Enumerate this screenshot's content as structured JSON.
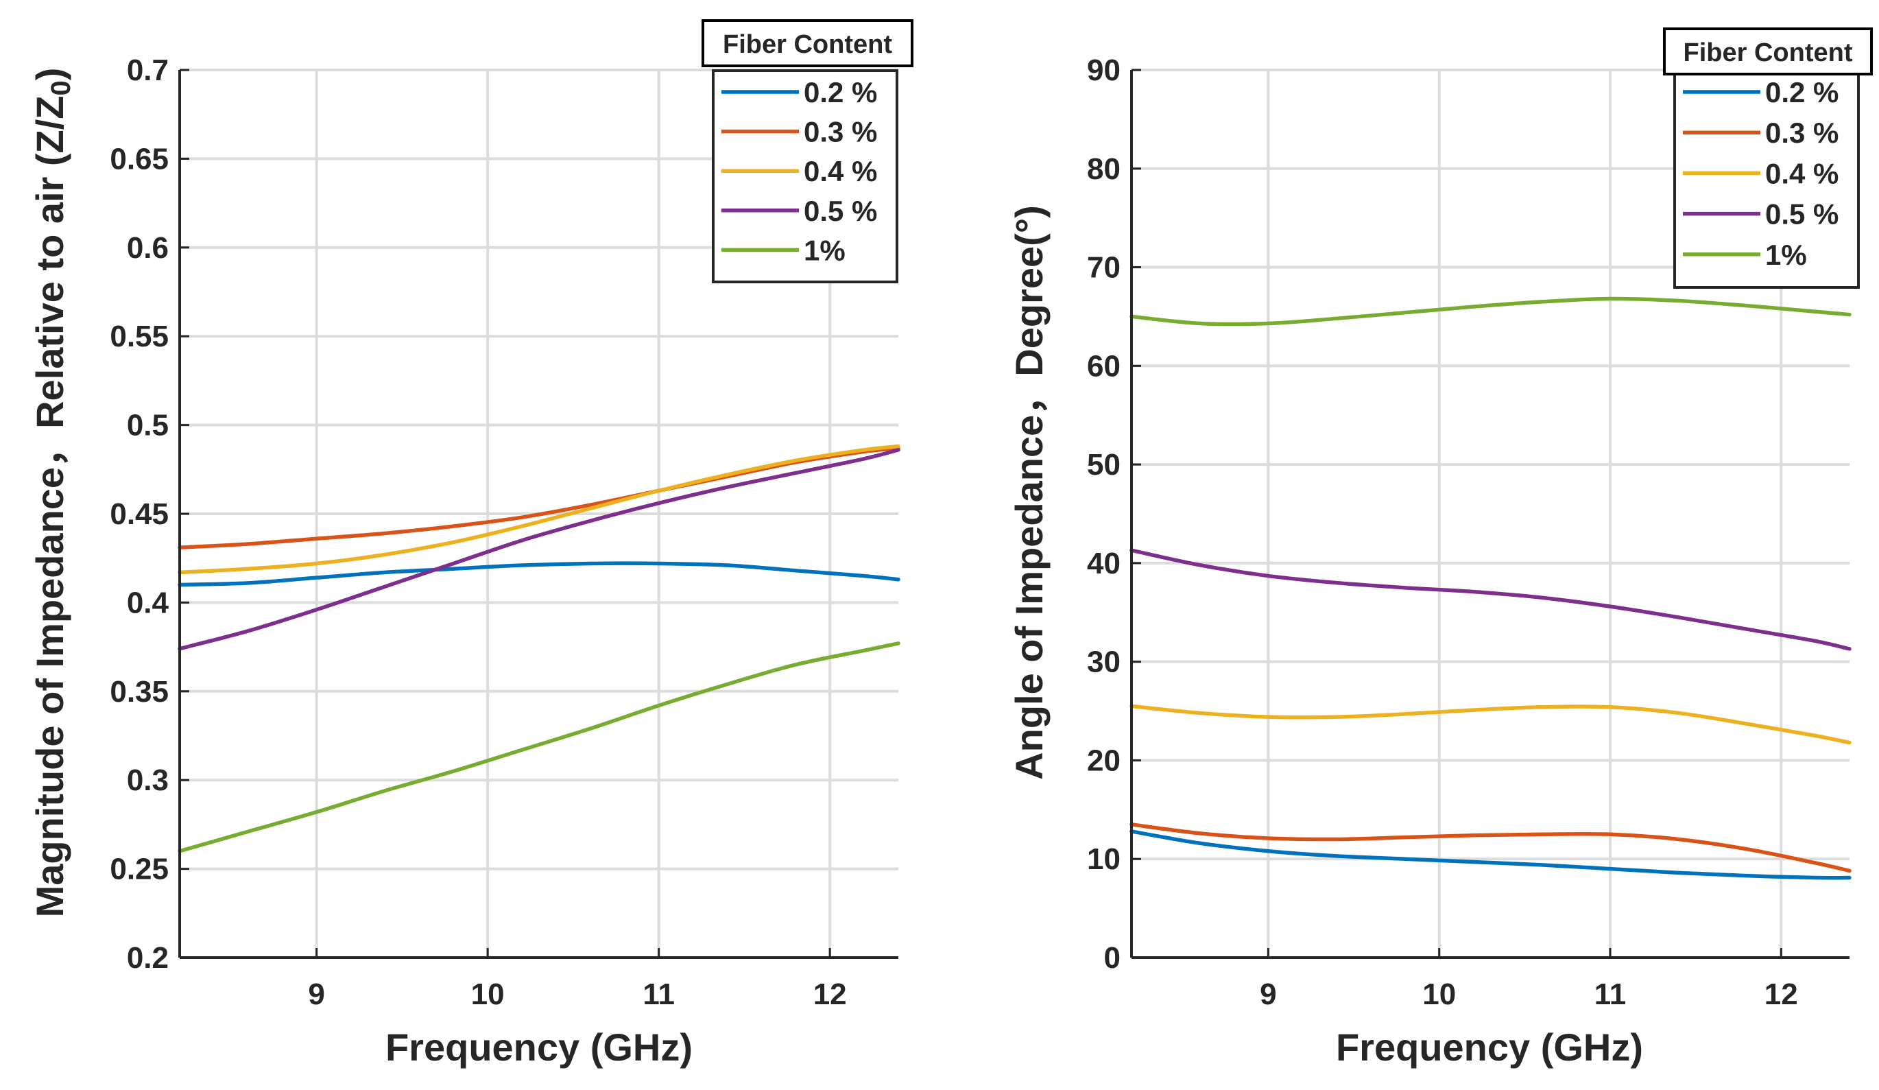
{
  "chart_data": [
    {
      "type": "line",
      "xlabel": "Frequency (GHz)",
      "ylabel_main": "Magnitude of Impedance，Relative to air (Z/Z",
      "ylabel_sub": "0",
      "ylabel_close": ")",
      "xlim": [
        8.2,
        12.4
      ],
      "ylim": [
        0.2,
        0.7
      ],
      "xticks": [
        "9",
        "10",
        "11",
        "12"
      ],
      "xtick_values": [
        9,
        10,
        11,
        12
      ],
      "yticks": [
        "0.2",
        "0.25",
        "0.3",
        "0.35",
        "0.4",
        "0.45",
        "0.5",
        "0.55",
        "0.6",
        "0.65",
        "0.7"
      ],
      "ytick_values": [
        0.2,
        0.25,
        0.3,
        0.35,
        0.4,
        0.45,
        0.5,
        0.55,
        0.6,
        0.65,
        0.7
      ],
      "grid": true,
      "legend_title": "Fiber Content",
      "legend_position": "top-right",
      "x": [
        8.2,
        8.6,
        9.0,
        9.4,
        9.8,
        10.2,
        10.6,
        11.0,
        11.4,
        11.8,
        12.2,
        12.4
      ],
      "series": [
        {
          "name": "0.2 %",
          "color": "#0072BD",
          "values": [
            0.41,
            0.411,
            0.414,
            0.417,
            0.419,
            0.421,
            0.422,
            0.422,
            0.421,
            0.418,
            0.415,
            0.413
          ]
        },
        {
          "name": "0.3 %",
          "color": "#D95319",
          "values": [
            0.431,
            0.433,
            0.436,
            0.439,
            0.443,
            0.448,
            0.455,
            0.463,
            0.471,
            0.479,
            0.485,
            0.487
          ]
        },
        {
          "name": "0.4 %",
          "color": "#EDB120",
          "values": [
            0.417,
            0.419,
            0.422,
            0.427,
            0.434,
            0.443,
            0.453,
            0.463,
            0.472,
            0.48,
            0.486,
            0.488
          ]
        },
        {
          "name": "0.5 %",
          "color": "#7E2F8E",
          "values": [
            0.374,
            0.384,
            0.396,
            0.409,
            0.422,
            0.435,
            0.446,
            0.456,
            0.465,
            0.473,
            0.481,
            0.486
          ]
        },
        {
          "name": "1%",
          "color": "#77AC30",
          "values": [
            0.26,
            0.271,
            0.282,
            0.294,
            0.305,
            0.317,
            0.329,
            0.342,
            0.354,
            0.365,
            0.373,
            0.377
          ]
        }
      ]
    },
    {
      "type": "line",
      "xlabel": "Frequency (GHz)",
      "ylabel_main": "Angle of Impedance，Degree(°)",
      "xlim": [
        8.2,
        12.4
      ],
      "ylim": [
        0,
        90
      ],
      "xticks": [
        "9",
        "10",
        "11",
        "12"
      ],
      "xtick_values": [
        9,
        10,
        11,
        12
      ],
      "yticks": [
        "0",
        "10",
        "20",
        "30",
        "40",
        "50",
        "60",
        "70",
        "80",
        "90"
      ],
      "ytick_values": [
        0,
        10,
        20,
        30,
        40,
        50,
        60,
        70,
        80,
        90
      ],
      "grid": true,
      "legend_title": "Fiber Content",
      "legend_position": "top-right",
      "x": [
        8.2,
        8.6,
        9.0,
        9.4,
        9.8,
        10.2,
        10.6,
        11.0,
        11.4,
        11.8,
        12.2,
        12.4
      ],
      "series": [
        {
          "name": "0.2 %",
          "color": "#0072BD",
          "values": [
            12.8,
            11.6,
            10.8,
            10.3,
            10.0,
            9.7,
            9.4,
            9.0,
            8.6,
            8.3,
            8.1,
            8.1
          ]
        },
        {
          "name": "0.3 %",
          "color": "#D95319",
          "values": [
            13.5,
            12.6,
            12.1,
            12.0,
            12.2,
            12.4,
            12.5,
            12.5,
            12.0,
            11.0,
            9.6,
            8.8
          ]
        },
        {
          "name": "0.4 %",
          "color": "#EDB120",
          "values": [
            25.5,
            24.8,
            24.4,
            24.4,
            24.7,
            25.1,
            25.4,
            25.4,
            24.8,
            23.7,
            22.5,
            21.8
          ]
        },
        {
          "name": "0.5 %",
          "color": "#7E2F8E",
          "values": [
            41.3,
            39.8,
            38.7,
            38.0,
            37.5,
            37.1,
            36.5,
            35.6,
            34.5,
            33.3,
            32.1,
            31.3
          ]
        },
        {
          "name": "1%",
          "color": "#77AC30",
          "values": [
            65.0,
            64.3,
            64.3,
            64.8,
            65.4,
            66.0,
            66.5,
            66.8,
            66.6,
            66.1,
            65.5,
            65.2
          ]
        }
      ]
    }
  ]
}
